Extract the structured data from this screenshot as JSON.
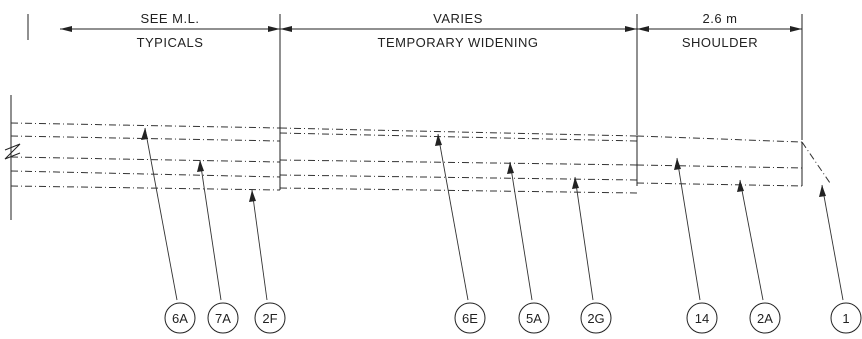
{
  "dimensions": {
    "typicals": {
      "top": "SEE M.L.",
      "bottom": "TYPICALS"
    },
    "widening": {
      "top": "VARIES",
      "bottom": "TEMPORARY WIDENING"
    },
    "shoulder": {
      "top": "2.6 m",
      "bottom": "SHOULDER"
    }
  },
  "callouts": [
    "6A",
    "7A",
    "2F",
    "6E",
    "5A",
    "2G",
    "14",
    "2A",
    "1"
  ]
}
